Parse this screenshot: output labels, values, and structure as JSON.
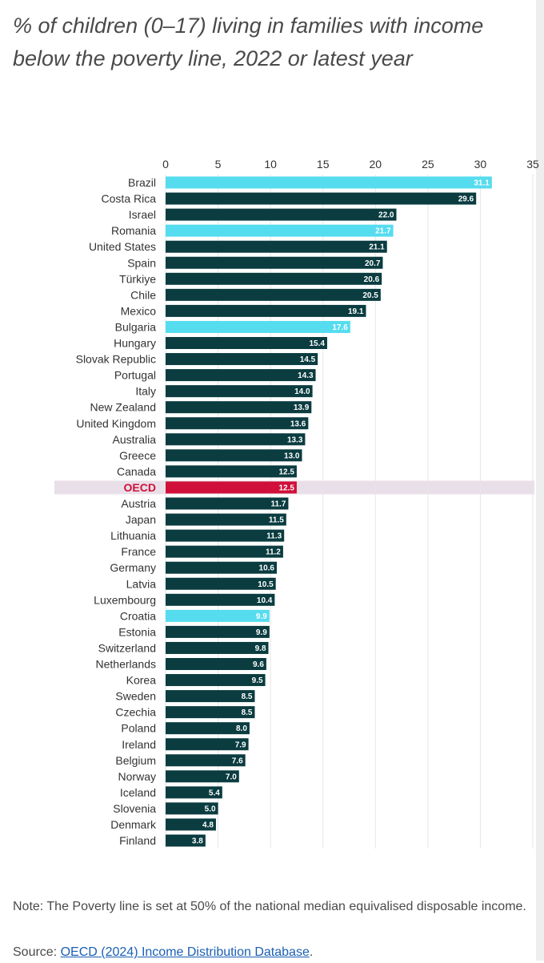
{
  "title": "% of children (0–17) living in families with income below the poverty line, 2022 or latest year",
  "note": "Note: The Poverty line is set at 50% of the national median equivalised disposable income.",
  "source": {
    "prefix": "Source: ",
    "link_text": "OECD (2024) Income Distribution Database",
    "suffix": "."
  },
  "colors": {
    "default_bar": "#0a3c40",
    "highlight_bar": "#55dcef",
    "oecd_bar": "#d0103a",
    "oecd_band": "#e9dfe8",
    "grid": "#e6e6e6",
    "label_text": "#333333",
    "value_text": "#ffffff"
  },
  "chart_data": {
    "type": "bar",
    "orientation": "horizontal",
    "xlim": [
      0,
      35
    ],
    "xticks": [
      0,
      5,
      10,
      15,
      20,
      25,
      30,
      35
    ],
    "grid": true,
    "categories": [
      "Brazil",
      "Costa Rica",
      "Israel",
      "Romania",
      "United States",
      "Spain",
      "Türkiye",
      "Chile",
      "Mexico",
      "Bulgaria",
      "Hungary",
      "Slovak Republic",
      "Portugal",
      "Italy",
      "New Zealand",
      "United Kingdom",
      "Australia",
      "Greece",
      "Canada",
      "OECD",
      "Austria",
      "Japan",
      "Lithuania",
      "France",
      "Germany",
      "Latvia",
      "Luxembourg",
      "Croatia",
      "Estonia",
      "Switzerland",
      "Netherlands",
      "Korea",
      "Sweden",
      "Czechia",
      "Poland",
      "Ireland",
      "Belgium",
      "Norway",
      "Iceland",
      "Slovenia",
      "Denmark",
      "Finland"
    ],
    "values": [
      31.1,
      29.6,
      22.0,
      21.7,
      21.1,
      20.7,
      20.6,
      20.5,
      19.1,
      17.6,
      15.4,
      14.5,
      14.3,
      14.0,
      13.9,
      13.6,
      13.3,
      13.0,
      12.5,
      12.5,
      11.7,
      11.5,
      11.3,
      11.2,
      10.6,
      10.5,
      10.4,
      9.9,
      9.9,
      9.8,
      9.6,
      9.5,
      8.5,
      8.5,
      8.0,
      7.9,
      7.6,
      7.0,
      5.4,
      5.0,
      4.8,
      3.8
    ],
    "highlighted": [
      "Brazil",
      "Romania",
      "Bulgaria",
      "Croatia"
    ],
    "average": "OECD"
  }
}
